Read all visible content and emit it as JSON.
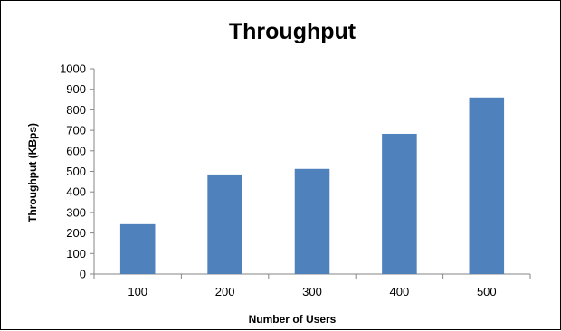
{
  "chart_data": {
    "type": "bar",
    "title": "Throughput",
    "xlabel": "Number of Users",
    "ylabel": "Throughput  (KBps)",
    "categories": [
      "100",
      "200",
      "300",
      "400",
      "500"
    ],
    "values": [
      243,
      485,
      512,
      683,
      860
    ],
    "ylim": [
      0,
      1000
    ],
    "yticks": [
      0,
      100,
      200,
      300,
      400,
      500,
      600,
      700,
      800,
      900,
      1000
    ],
    "bar_color": "#4f81bd",
    "grid": false,
    "legend": "none"
  }
}
